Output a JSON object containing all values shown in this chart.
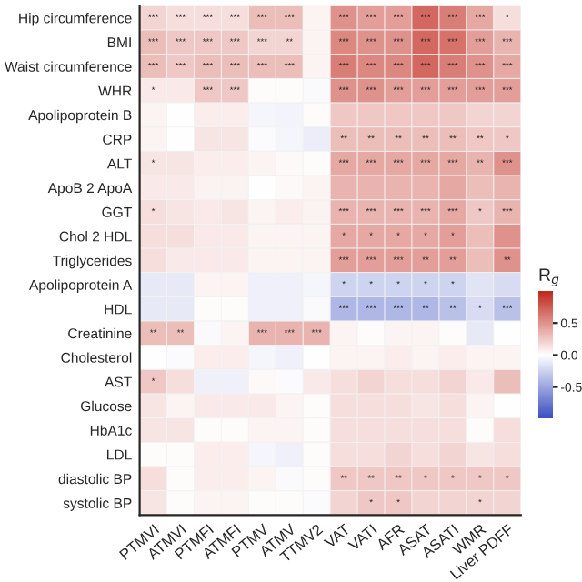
{
  "chart_data": {
    "type": "heatmap",
    "clabel": "R$_{g}$",
    "categories": [
      "PTMVI",
      "ATMVI",
      "PTMFI",
      "ATMFI",
      "PTMV",
      "ATMV",
      "TTMV2",
      "VAT",
      "VATI",
      "AFR",
      "ASAT",
      "ASATI",
      "WMR",
      "Liver PDFF"
    ],
    "y_categories": [
      "Hip circumference",
      "BMI",
      "Waist circumference",
      "WHR",
      "Apolipoprotein B",
      "CRP",
      "ALT",
      "ApoB 2 ApoA",
      "GGT",
      "Chol 2 HDL",
      "Triglycerides",
      "Apolipoprotein A",
      "HDL",
      "Creatinine",
      "Cholesterol",
      "AST",
      "Glucose",
      "HbA1c",
      "LDL",
      "diastolic BP",
      "systolic BP"
    ],
    "cells": [
      [
        0.2,
        0.15,
        0.15,
        0.15,
        0.3,
        0.3,
        0.05,
        0.5,
        0.45,
        0.45,
        0.7,
        0.6,
        0.4,
        0.15
      ],
      [
        0.3,
        0.25,
        0.25,
        0.25,
        0.2,
        0.2,
        0.05,
        0.55,
        0.5,
        0.5,
        0.7,
        0.65,
        0.45,
        0.35
      ],
      [
        0.3,
        0.25,
        0.3,
        0.3,
        0.3,
        0.3,
        0.05,
        0.6,
        0.55,
        0.55,
        0.7,
        0.6,
        0.5,
        0.4
      ],
      [
        0.1,
        0.1,
        0.25,
        0.25,
        0.02,
        0.02,
        -0.03,
        0.5,
        0.5,
        0.45,
        0.45,
        0.45,
        0.45,
        0.45
      ],
      [
        0.05,
        0.0,
        0.08,
        0.08,
        -0.05,
        -0.07,
        0.02,
        0.25,
        0.25,
        0.25,
        0.25,
        0.25,
        0.2,
        0.2
      ],
      [
        0.05,
        0.0,
        0.12,
        0.12,
        -0.02,
        -0.05,
        -0.1,
        0.3,
        0.3,
        0.3,
        0.3,
        0.3,
        0.25,
        0.25
      ],
      [
        0.12,
        0.12,
        0.08,
        0.08,
        0.05,
        0.03,
        0.02,
        0.4,
        0.4,
        0.4,
        0.4,
        0.4,
        0.35,
        0.5
      ],
      [
        0.1,
        0.1,
        0.06,
        0.06,
        0.0,
        0.03,
        0.05,
        0.35,
        0.35,
        0.35,
        0.35,
        0.4,
        0.3,
        0.35
      ],
      [
        0.15,
        0.12,
        0.1,
        0.12,
        0.05,
        0.08,
        0.06,
        0.35,
        0.35,
        0.35,
        0.35,
        0.4,
        0.25,
        0.35
      ],
      [
        0.15,
        0.15,
        0.1,
        0.1,
        0.05,
        0.05,
        0.05,
        0.4,
        0.4,
        0.4,
        0.4,
        0.45,
        0.3,
        0.5
      ],
      [
        0.15,
        0.1,
        0.1,
        0.1,
        0.05,
        0.05,
        0.05,
        0.45,
        0.45,
        0.45,
        0.45,
        0.45,
        0.3,
        0.5
      ],
      [
        -0.12,
        -0.12,
        0.05,
        0.05,
        -0.08,
        -0.08,
        -0.05,
        -0.25,
        -0.25,
        -0.25,
        -0.25,
        -0.25,
        -0.15,
        -0.2
      ],
      [
        -0.12,
        -0.12,
        0.02,
        0.02,
        -0.08,
        -0.08,
        -0.03,
        -0.4,
        -0.4,
        -0.4,
        -0.4,
        -0.35,
        -0.2,
        -0.35
      ],
      [
        0.3,
        0.3,
        -0.03,
        0.05,
        0.35,
        0.35,
        0.35,
        0.05,
        0.02,
        0.05,
        0.05,
        0.02,
        -0.12,
        0.0
      ],
      [
        0.0,
        -0.02,
        0.08,
        0.08,
        -0.05,
        -0.08,
        0.0,
        0.05,
        0.05,
        0.08,
        0.05,
        0.08,
        0.05,
        0.05
      ],
      [
        0.25,
        0.15,
        -0.08,
        -0.08,
        0.03,
        -0.02,
        0.1,
        0.15,
        0.2,
        0.15,
        0.15,
        0.2,
        0.1,
        0.3
      ],
      [
        0.12,
        0.05,
        0.1,
        0.1,
        0.1,
        0.05,
        0.02,
        0.15,
        0.15,
        0.15,
        0.12,
        0.15,
        0.05,
        0.0
      ],
      [
        0.12,
        0.12,
        0.02,
        0.02,
        0.05,
        0.05,
        0.02,
        0.15,
        0.15,
        0.15,
        0.15,
        0.15,
        0.02,
        0.15
      ],
      [
        0.02,
        0.02,
        0.08,
        0.08,
        -0.05,
        -0.08,
        0.02,
        0.15,
        0.15,
        0.2,
        0.15,
        0.2,
        0.12,
        0.15
      ],
      [
        0.15,
        0.02,
        0.08,
        0.08,
        0.05,
        -0.03,
        0.02,
        0.25,
        0.25,
        0.25,
        0.25,
        0.25,
        0.25,
        0.25
      ],
      [
        0.12,
        0.02,
        0.05,
        0.05,
        0.02,
        0.02,
        -0.02,
        0.2,
        0.25,
        0.25,
        0.2,
        0.2,
        0.2,
        0.2
      ]
    ],
    "cell_labels": [
      [
        "***",
        "***",
        "***",
        "***",
        "***",
        "***",
        null,
        "***",
        "***",
        "***",
        "***",
        "***",
        "***",
        "*"
      ],
      [
        "***",
        "***",
        "***",
        "***",
        "***",
        "**",
        null,
        "***",
        "***",
        "***",
        "***",
        "***",
        "***",
        "***"
      ],
      [
        "***",
        "***",
        "***",
        "***",
        "***",
        "***",
        null,
        "***",
        "***",
        "***",
        "***",
        "***",
        "***",
        "***"
      ],
      [
        "*",
        null,
        "***",
        "***",
        null,
        null,
        null,
        "***",
        "***",
        "***",
        "***",
        "***",
        "***",
        "***"
      ],
      [
        null,
        null,
        null,
        null,
        null,
        null,
        null,
        null,
        null,
        null,
        null,
        null,
        null,
        null
      ],
      [
        null,
        null,
        null,
        null,
        null,
        null,
        null,
        "**",
        "**",
        "**",
        "**",
        "**",
        "**",
        "*"
      ],
      [
        "*",
        null,
        null,
        null,
        null,
        null,
        null,
        "***",
        "***",
        "***",
        "***",
        "***",
        "**",
        "***"
      ],
      [
        null,
        null,
        null,
        null,
        null,
        null,
        null,
        null,
        null,
        null,
        null,
        null,
        null,
        null
      ],
      [
        "*",
        null,
        null,
        null,
        null,
        null,
        null,
        "***",
        "***",
        "***",
        "***",
        "***",
        "*",
        "***"
      ],
      [
        null,
        null,
        null,
        null,
        null,
        null,
        null,
        "*",
        "*",
        "*",
        "*",
        "*",
        null,
        null
      ],
      [
        null,
        null,
        null,
        null,
        null,
        null,
        null,
        "***",
        "***",
        "***",
        "**",
        "**",
        null,
        "**"
      ],
      [
        null,
        null,
        null,
        null,
        null,
        null,
        null,
        "*",
        "*",
        "*",
        "*",
        "*",
        null,
        null
      ],
      [
        null,
        null,
        null,
        null,
        null,
        null,
        null,
        "***",
        "***",
        "***",
        "**",
        "**",
        "*",
        "***"
      ],
      [
        "**",
        "**",
        null,
        null,
        "***",
        "***",
        "***",
        null,
        null,
        null,
        null,
        null,
        null,
        null
      ],
      [
        null,
        null,
        null,
        null,
        null,
        null,
        null,
        null,
        null,
        null,
        null,
        null,
        null,
        null
      ],
      [
        "*",
        null,
        null,
        null,
        null,
        null,
        null,
        null,
        null,
        null,
        null,
        null,
        null,
        null
      ],
      [
        null,
        null,
        null,
        null,
        null,
        null,
        null,
        null,
        null,
        null,
        null,
        null,
        null,
        null
      ],
      [
        null,
        null,
        null,
        null,
        null,
        null,
        null,
        null,
        null,
        null,
        null,
        null,
        null,
        null
      ],
      [
        null,
        null,
        null,
        null,
        null,
        null,
        null,
        null,
        null,
        null,
        null,
        null,
        null,
        null
      ],
      [
        null,
        null,
        null,
        null,
        null,
        null,
        null,
        "**",
        "**",
        "**",
        "*",
        "*",
        "*",
        "*"
      ],
      [
        null,
        null,
        null,
        null,
        null,
        null,
        null,
        null,
        "*",
        "*",
        null,
        null,
        "*",
        null
      ]
    ],
    "clim": [
      -1,
      1
    ],
    "cticks": [
      {
        "value": 0.5,
        "label": "0.5"
      },
      {
        "value": 0,
        "label": "0.0"
      },
      {
        "value": -0.5,
        "label": "-0.5"
      }
    ]
  }
}
